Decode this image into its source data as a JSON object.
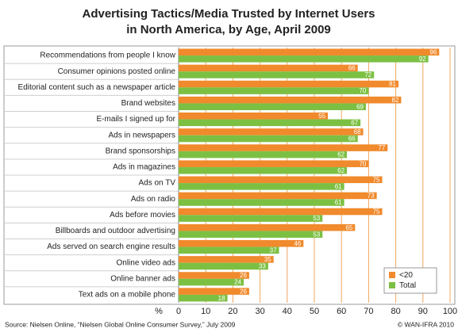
{
  "chart_data": {
    "type": "bar",
    "orientation": "horizontal",
    "title": [
      "Advertising Tactics/Media Trusted by Internet Users",
      "in North America, by Age, April 2009"
    ],
    "categories": [
      "Recommendations from people I know",
      "Consumer opinions posted online",
      "Editorial content such as a newspaper article",
      "Brand websites",
      "E-mails I signed up for",
      "Ads in newspapers",
      "Brand sponsorships",
      "Ads in magazines",
      "Ads on TV",
      "Ads on radio",
      "Ads before movies",
      "Billboards and outdoor advertising",
      "Ads served on search engine results",
      "Online video ads",
      "Online banner ads",
      "Text ads on a mobile phone"
    ],
    "series": [
      {
        "name": "<20",
        "color": "#f08a2c",
        "values": [
          96,
          66,
          81,
          82,
          55,
          68,
          77,
          70,
          75,
          73,
          75,
          65,
          46,
          35,
          26,
          26
        ]
      },
      {
        "name": "Total",
        "color": "#7cc043",
        "values": [
          92,
          72,
          70,
          69,
          67,
          66,
          62,
          62,
          61,
          61,
          53,
          53,
          37,
          33,
          24,
          18
        ]
      }
    ],
    "xlim": [
      0,
      100
    ],
    "xticks": [
      0,
      10,
      20,
      30,
      40,
      50,
      60,
      70,
      80,
      90,
      100
    ],
    "x_unit": "%",
    "grid": true,
    "legend": "lower right",
    "source": "Source: Nielsen Online, “Nielsen Global Online Consumer Survey,” July 2009",
    "credit": "© WAN-IFRA 2010"
  }
}
